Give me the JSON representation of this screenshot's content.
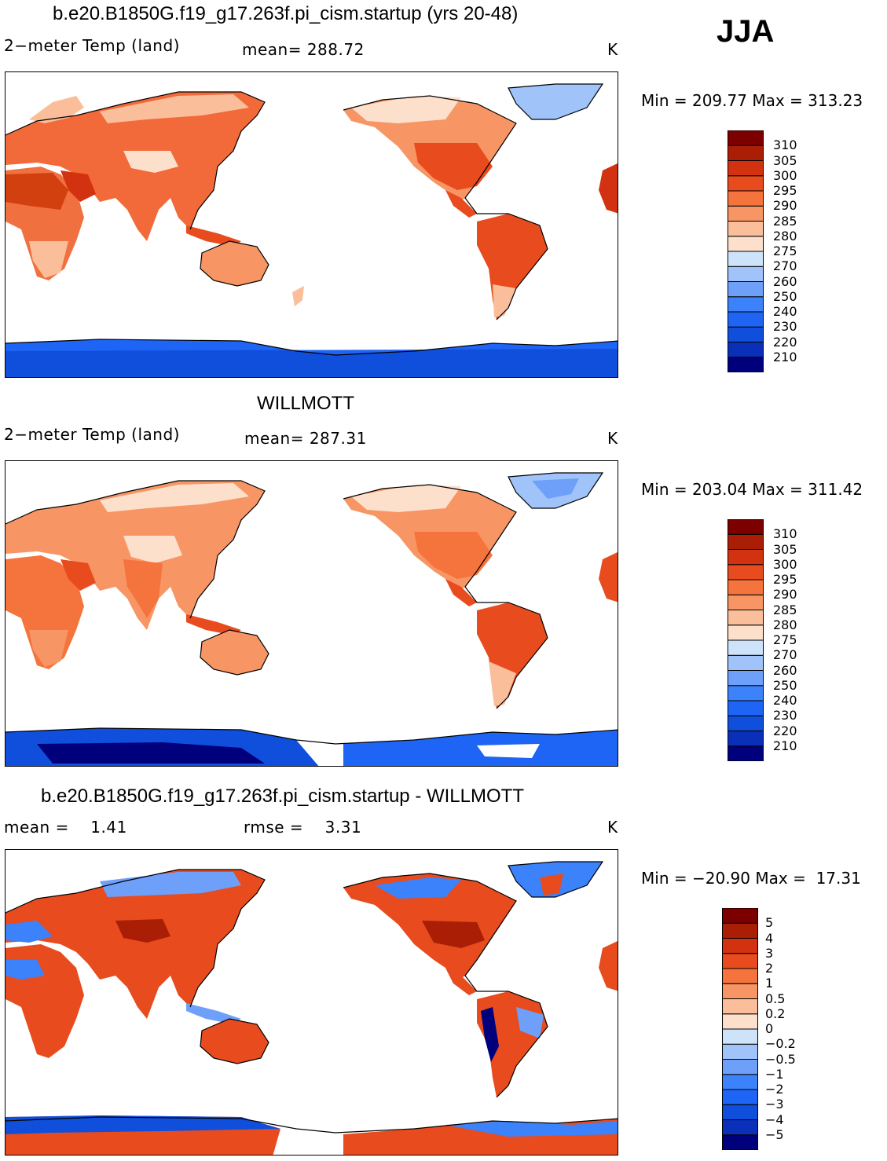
{
  "season": "JJA",
  "panels": [
    {
      "title": "b.e20.B1850G.f19_g17.263f.pi_cism.startup (yrs 20-48)",
      "left_label": "2−meter Temp (land)",
      "center_label": "mean= 288.72",
      "units": "K",
      "min_label": "Min",
      "min_value": "209.77",
      "max_label": "Max",
      "max_value": "313.23",
      "colorbar": {
        "colors": [
          "#00007d",
          "#0a2fb8",
          "#0f4fdc",
          "#1e64f5",
          "#3c82fa",
          "#6ea0fa",
          "#a0c3fa",
          "#cde3fa",
          "#fde0cc",
          "#fbbe9a",
          "#f79664",
          "#f5733c",
          "#e84b1e",
          "#d2320f",
          "#aa1e05",
          "#7d0000"
        ],
        "labels": [
          "210",
          "220",
          "230",
          "240",
          "250",
          "260",
          "270",
          "275",
          "280",
          "285",
          "290",
          "295",
          "300",
          "305",
          "310"
        ]
      }
    },
    {
      "title": "WILLMOTT",
      "left_label": "2−meter Temp (land)",
      "center_label": "mean= 287.31",
      "units": "K",
      "min_label": "Min",
      "min_value": "203.04",
      "max_label": "Max",
      "max_value": "311.42",
      "colorbar": {
        "colors": [
          "#00007d",
          "#0a2fb8",
          "#0f4fdc",
          "#1e64f5",
          "#3c82fa",
          "#6ea0fa",
          "#a0c3fa",
          "#cde3fa",
          "#fde0cc",
          "#fbbe9a",
          "#f79664",
          "#f5733c",
          "#e84b1e",
          "#d2320f",
          "#aa1e05",
          "#7d0000"
        ],
        "labels": [
          "210",
          "220",
          "230",
          "240",
          "250",
          "260",
          "270",
          "275",
          "280",
          "285",
          "290",
          "295",
          "300",
          "305",
          "310"
        ]
      }
    },
    {
      "title": "b.e20.B1850G.f19_g17.263f.pi_cism.startup - WILLMOTT",
      "left_label": "mean =",
      "left_value": "1.41",
      "center_label": "rmse =",
      "center_value": "3.31",
      "units": "K",
      "min_label": "Min",
      "min_value": "−20.90",
      "max_label": "Max",
      "max_value": "17.31",
      "colorbar": {
        "colors": [
          "#00007d",
          "#0a2fb8",
          "#0f4fdc",
          "#1e64f5",
          "#3c82fa",
          "#6ea0fa",
          "#a0c3fa",
          "#cde3fa",
          "#fde0cc",
          "#fbbe9a",
          "#f79664",
          "#f5733c",
          "#e84b1e",
          "#d2320f",
          "#aa1e05",
          "#7d0000"
        ],
        "labels": [
          "−5",
          "−4",
          "−3",
          "−2",
          "−1",
          "−0.5",
          "−0.2",
          "0",
          "0.2",
          "0.5",
          "1",
          "2",
          "3",
          "4",
          "5"
        ]
      }
    }
  ]
}
